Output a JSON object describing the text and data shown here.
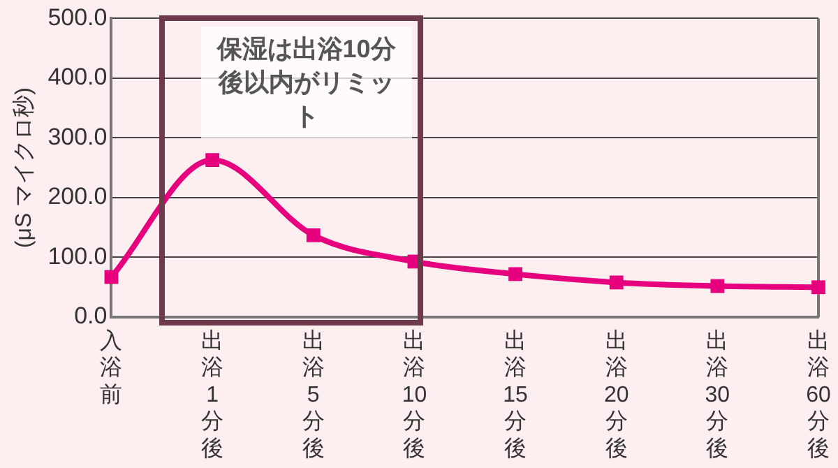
{
  "chart_data": {
    "type": "line",
    "ylabel": "(μS マイクロ秒)",
    "categories": [
      "入浴前",
      "出浴1分後",
      "出浴5分後",
      "出浴10分後",
      "出浴15分後",
      "出浴20分後",
      "出浴30分後",
      "出浴60分後"
    ],
    "series": [
      {
        "color": "#e6007e",
        "values": [
          67,
          263,
          137,
          93,
          72,
          58,
          52,
          50
        ]
      }
    ],
    "ylim": [
      0,
      500
    ],
    "yticks": [
      {
        "value": 0,
        "label": "0.0"
      },
      {
        "value": 100,
        "label": "100.0"
      },
      {
        "value": 200,
        "label": "200.0"
      },
      {
        "value": 300,
        "label": "300.0"
      },
      {
        "value": 400,
        "label": "400.0"
      },
      {
        "value": 500,
        "label": "500.0"
      }
    ],
    "grid": "y",
    "legend": false,
    "marker": "square",
    "line_style": "solid",
    "annotations": [
      "保湿は出浴10分後以内がリミット"
    ]
  }
}
